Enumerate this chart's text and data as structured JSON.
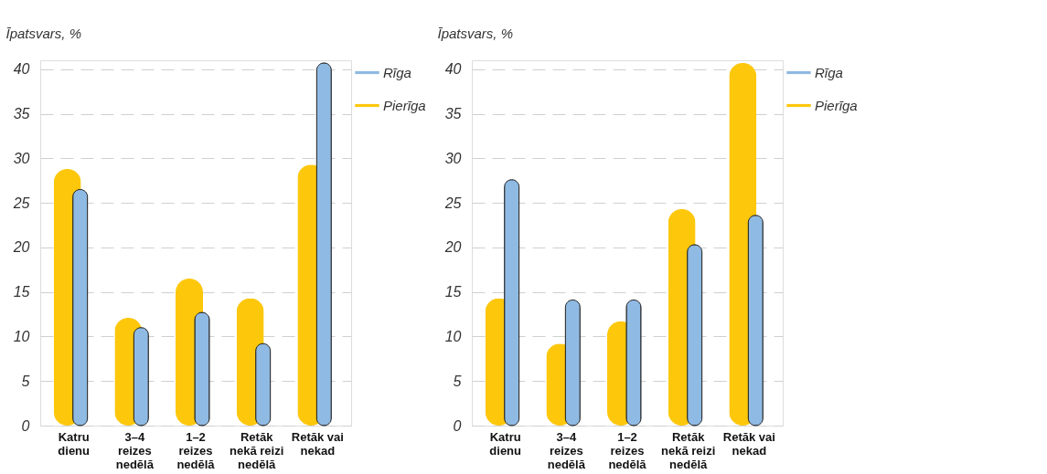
{
  "chart_data": [
    {
      "type": "bar",
      "ylabel": "Īpatsvars, %",
      "categories": [
        "Katru\ndienu",
        "3–4\nreizes\nnedēlā",
        "1–2\nreizes\nnedēlā",
        "Retāk\nnekā reizi\nnedēlā",
        "Retāk vai\nnekad"
      ],
      "series": [
        {
          "name": "Rīga",
          "color": "#8fbae3",
          "values": [
            26.5,
            11.0,
            12.7,
            9.2,
            40.7
          ]
        },
        {
          "name": "Pierīga",
          "color": "#fdc70c",
          "values": [
            28.8,
            12.1,
            16.5,
            14.3,
            29.3
          ]
        }
      ],
      "ylim": [
        0,
        41
      ],
      "yticks": [
        0,
        5,
        10,
        15,
        20,
        25,
        30,
        35,
        40
      ],
      "grid": "y",
      "legend": "top right"
    },
    {
      "type": "bar",
      "ylabel": "Īpatsvars, %",
      "categories": [
        "Katru\ndienu",
        "3–4\nreizes\nnedēlā",
        "1–2\nreizes\nnedēlā",
        "Retāk\nnekā reizi\nnedēlā",
        "Retāk vai\nnekad"
      ],
      "series": [
        {
          "name": "Rīga",
          "color": "#8fbae3",
          "values": [
            27.6,
            14.1,
            14.1,
            20.3,
            23.6
          ]
        },
        {
          "name": "Pierīga",
          "color": "#fdc70c",
          "values": [
            14.3,
            9.2,
            11.7,
            24.3,
            40.7
          ]
        }
      ],
      "ylim": [
        0,
        41
      ],
      "yticks": [
        0,
        5,
        10,
        15,
        20,
        25,
        30,
        35,
        40
      ],
      "grid": "y",
      "legend": "top right"
    }
  ]
}
